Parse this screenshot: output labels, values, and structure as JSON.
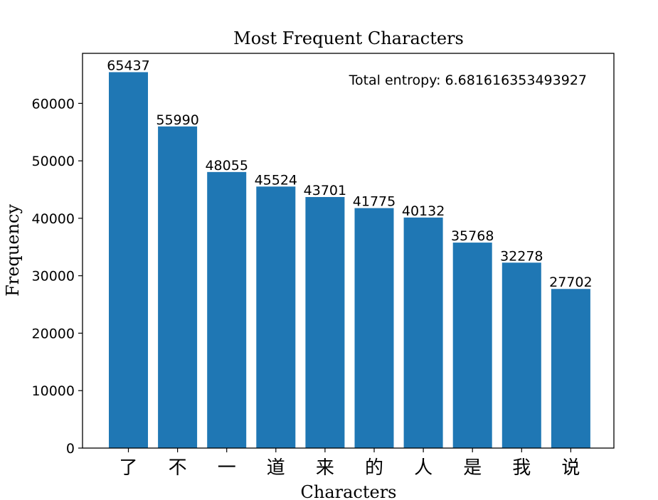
{
  "chart_data": {
    "type": "bar",
    "title": "Most Frequent Characters",
    "xlabel": "Characters",
    "ylabel": "Frequency",
    "categories": [
      "了",
      "不",
      "一",
      "道",
      "来",
      "的",
      "人",
      "是",
      "我",
      "说"
    ],
    "values": [
      65437,
      55990,
      48055,
      45524,
      43701,
      41775,
      40132,
      35768,
      32278,
      27702
    ],
    "ylim": [
      0,
      68712
    ],
    "yticks": [
      0,
      10000,
      20000,
      30000,
      40000,
      50000,
      60000
    ],
    "annotation": "Total entropy: 6.681616353493927",
    "bar_color": "#1f77b4",
    "grid": false,
    "legend": "none"
  }
}
